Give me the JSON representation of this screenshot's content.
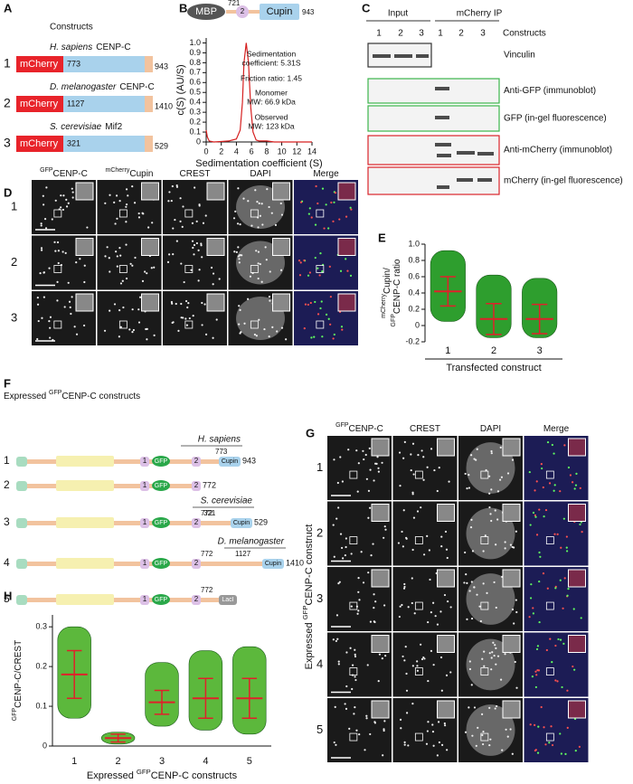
{
  "panel_labels": [
    "A",
    "B",
    "C",
    "D",
    "E",
    "F",
    "G",
    "H"
  ],
  "A": {
    "title": "Constructs",
    "rows": [
      {
        "number": "1",
        "species": "H. sapiens",
        "protein": "CENP-C",
        "tag": "mCherry",
        "start": "773",
        "end": "943"
      },
      {
        "number": "2",
        "species": "D. melanogaster",
        "protein": "CENP-C",
        "tag": "mCherry",
        "start": "1127",
        "end": "1410"
      },
      {
        "number": "3",
        "species": "S. cerevisiae",
        "protein": "Mif2",
        "tag": "mCherry",
        "start": "321",
        "end": "529"
      }
    ]
  },
  "B": {
    "tag": "MBP",
    "start": "721",
    "motif": "2",
    "domain": "Cupin",
    "end": "943"
  },
  "C": {
    "input": "Input",
    "ip": "mCherry IP",
    "lanes": [
      "1",
      "2",
      "3",
      "1",
      "2",
      "3"
    ],
    "lanes_label": "Constructs",
    "blots": [
      "Vinculin",
      "Anti-GFP (immunoblot)",
      "GFP (in-gel fluorescence)",
      "Anti-mCherry (immunoblot)",
      "mCherry (in-gel fluorescence)"
    ]
  },
  "D": {
    "columns": [
      {
        "sup": "GFP",
        "text": "CENP-C"
      },
      {
        "sup": "mCherry",
        "text": "Cupin"
      },
      {
        "text": "CREST"
      },
      {
        "text": "DAPI"
      },
      {
        "text": "Merge"
      }
    ],
    "rows": [
      "1",
      "2",
      "3"
    ]
  },
  "F": {
    "title": {
      "pre": "Expressed ",
      "sup": "GFP",
      "text": "CENP-C constructs"
    },
    "rows": [
      {
        "number": "1",
        "motif1": "1",
        "tag": "GFP",
        "motif2": "2",
        "species": "H. sapiens",
        "start": "773",
        "domain": "Cupin",
        "end": "943"
      },
      {
        "number": "2",
        "motif1": "1",
        "tag": "GFP",
        "motif2": "2",
        "end": "772"
      },
      {
        "number": "3",
        "motif1": "1",
        "tag": "GFP",
        "motif2": "2",
        "species": "S. cerevisiae",
        "junction": "772",
        "start": "321",
        "domain": "Cupin",
        "end": "529"
      },
      {
        "number": "4",
        "motif1": "1",
        "tag": "GFP",
        "motif2": "2",
        "species": "D. melanogaster",
        "junction": "772",
        "start": "1127",
        "domain": "Cupin",
        "end": "1410"
      },
      {
        "number": "5",
        "motif1": "1",
        "tag": "GFP",
        "motif2": "2",
        "junction": "772",
        "domain": "LacI"
      }
    ]
  },
  "G": {
    "columns": [
      {
        "sup": "GFP",
        "text": "CENP-C"
      },
      {
        "text": "CREST"
      },
      {
        "text": "DAPI"
      },
      {
        "text": "Merge"
      }
    ],
    "rows": [
      "1",
      "2",
      "3",
      "4",
      "5"
    ],
    "ylabel": {
      "pre": "Expressed ",
      "sup": "GFP",
      "text": "CENP-C construct"
    }
  },
  "chart_data": [
    {
      "type": "line",
      "ylabel": "c(S) (AU/S)",
      "xlabel": "Sedimentation coefficient (S)",
      "color": "#d62020",
      "annotations": [
        "Sedimentation",
        "coefficient: 5.31S",
        "Friction ratio: 1.45",
        "Monomer",
        "MW: 66.9 kDa",
        "Observed",
        "MW: 123 kDa"
      ],
      "x": [
        0,
        0.15,
        0.4,
        1,
        2,
        3,
        4,
        4.5,
        4.8,
        5.0,
        5.3,
        5.6,
        5.9,
        6.2,
        6.6,
        7,
        8,
        9,
        11,
        14
      ],
      "values": [
        0.12,
        0.05,
        0.01,
        0,
        0.005,
        0.01,
        0.03,
        0.12,
        0.4,
        0.8,
        1.0,
        0.8,
        0.35,
        0.1,
        0.02,
        0.01,
        0.01,
        0,
        0,
        0
      ],
      "xlim": [
        0,
        14
      ],
      "xticks": [
        0,
        2,
        4,
        6,
        8,
        10,
        12,
        14
      ],
      "ylim": [
        0,
        1.05
      ],
      "yticks": [
        0,
        0.1,
        0.2,
        0.3,
        0.4,
        0.5,
        0.6,
        0.7,
        0.8,
        0.9,
        {
          "value": 1,
          "label": "1.0"
        }
      ]
    },
    {
      "type": "dot",
      "ylabel": [
        {
          "sup": "mCherry",
          "text": "Cupin/"
        },
        {
          "sup": "GFP",
          "text": "CENP-C ratio"
        }
      ],
      "xlabel": "Transfected construct",
      "categories": [
        "1",
        "2",
        "3"
      ],
      "values": [
        0.42,
        0.08,
        0.08
      ],
      "sd": [
        0.18,
        0.19,
        0.18
      ],
      "min": [
        0.05,
        -0.15,
        -0.15
      ],
      "max": [
        0.92,
        0.62,
        0.58
      ],
      "color": "#2e9e2e",
      "bar_color": "#e0202a",
      "ylim": [
        -0.2,
        1.0
      ],
      "yticks": [
        -0.2,
        0,
        0.2,
        0.4,
        0.6,
        0.8,
        {
          "value": 1,
          "label": "1.0"
        }
      ]
    },
    {
      "type": "dot",
      "ylabel": [
        {
          "sup": "GFP",
          "text": "CENP-C/CREST"
        }
      ],
      "xlabel": {
        "pre": "Expressed ",
        "sup": "GFP",
        "text": "CENP-C constructs"
      },
      "categories": [
        "1",
        "2",
        "3",
        "4",
        "5"
      ],
      "values": [
        0.18,
        0.02,
        0.11,
        0.12,
        0.12
      ],
      "sd": [
        0.06,
        0.01,
        0.03,
        0.05,
        0.05
      ],
      "min": [
        0.07,
        0.005,
        0.05,
        0.04,
        0.03
      ],
      "max": [
        0.3,
        0.035,
        0.21,
        0.24,
        0.25
      ],
      "color": "#5cb83c",
      "bar_color": "#e0202a",
      "ylim": [
        0,
        0.33
      ],
      "yticks": [
        0,
        0.1,
        0.2,
        0.3
      ]
    }
  ]
}
